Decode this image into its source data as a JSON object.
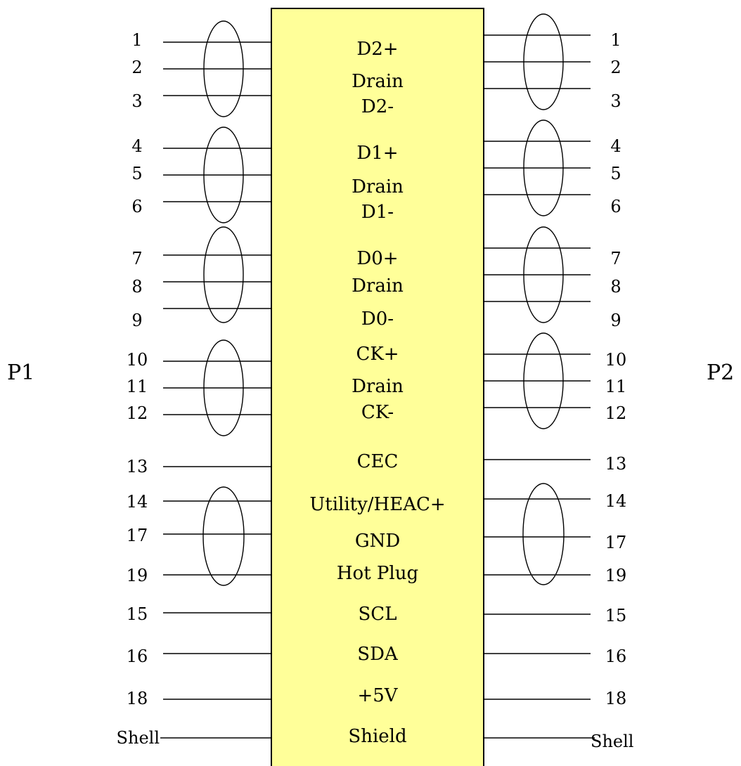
{
  "connectors": {
    "left": "P1",
    "right": "P2"
  },
  "colors": {
    "cable_body": "#ffff99",
    "line": "#000000"
  },
  "signals": [
    "D2+",
    "Drain",
    "D2-",
    "D1+",
    "Drain",
    "D1-",
    "D0+",
    "Drain",
    "D0-",
    "CK+",
    "Drain",
    "CK-",
    "CEC",
    "Utility/HEAC+",
    "GND",
    "Hot Plug",
    "SCL",
    "SDA",
    "+5V",
    "Shield"
  ],
  "left_pins": [
    "1",
    "2",
    "3",
    "4",
    "5",
    "6",
    "7",
    "8",
    "9",
    "10",
    "11",
    "12",
    "13",
    "14",
    "17",
    "19",
    "15",
    "16",
    "18",
    "Shell"
  ],
  "right_pins": [
    "1",
    "2",
    "3",
    "4",
    "5",
    "6",
    "7",
    "8",
    "9",
    "10",
    "11",
    "12",
    "13",
    "14",
    "17",
    "19",
    "15",
    "16",
    "18",
    "Shell"
  ]
}
